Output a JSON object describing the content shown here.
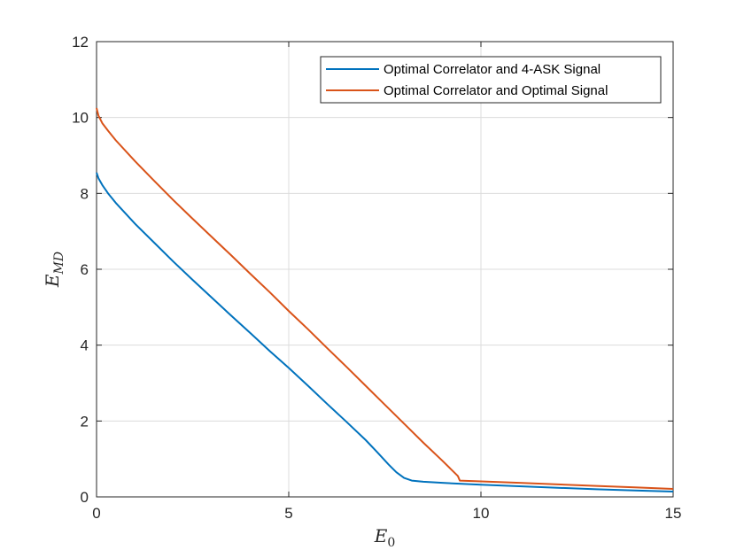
{
  "chart_data": {
    "type": "line",
    "xlabel": {
      "main": "E",
      "sub": "0"
    },
    "ylabel": {
      "main": "E",
      "sub": "MD"
    },
    "xlim": [
      0,
      15
    ],
    "ylim": [
      0,
      12
    ],
    "xticks": [
      0,
      5,
      10,
      15
    ],
    "yticks": [
      0,
      2,
      4,
      6,
      8,
      10,
      12
    ],
    "grid": true,
    "legend_position": "top-right",
    "series": [
      {
        "name": "Optimal Correlator and 4-ASK Signal",
        "color": "#0072BD",
        "points": [
          [
            0,
            8.55
          ],
          [
            0.05,
            8.4
          ],
          [
            0.15,
            8.22
          ],
          [
            0.3,
            8.0
          ],
          [
            0.5,
            7.75
          ],
          [
            1,
            7.2
          ],
          [
            1.5,
            6.7
          ],
          [
            2,
            6.2
          ],
          [
            2.5,
            5.72
          ],
          [
            3,
            5.25
          ],
          [
            3.5,
            4.78
          ],
          [
            4,
            4.32
          ],
          [
            4.5,
            3.85
          ],
          [
            5,
            3.4
          ],
          [
            5.5,
            2.93
          ],
          [
            6,
            2.45
          ],
          [
            6.5,
            1.98
          ],
          [
            7,
            1.5
          ],
          [
            7.3,
            1.18
          ],
          [
            7.6,
            0.85
          ],
          [
            7.8,
            0.65
          ],
          [
            8.0,
            0.5
          ],
          [
            8.2,
            0.43
          ],
          [
            8.5,
            0.4
          ],
          [
            9,
            0.37
          ],
          [
            10,
            0.32
          ],
          [
            11,
            0.28
          ],
          [
            12,
            0.24
          ],
          [
            13,
            0.2
          ],
          [
            14,
            0.17
          ],
          [
            15,
            0.14
          ]
        ]
      },
      {
        "name": "Optimal Correlator and Optimal Signal",
        "color": "#D95319",
        "points": [
          [
            0,
            10.25
          ],
          [
            0.05,
            10.05
          ],
          [
            0.15,
            9.85
          ],
          [
            0.3,
            9.65
          ],
          [
            0.5,
            9.4
          ],
          [
            1,
            8.85
          ],
          [
            1.5,
            8.33
          ],
          [
            2,
            7.82
          ],
          [
            2.5,
            7.33
          ],
          [
            3,
            6.85
          ],
          [
            3.5,
            6.37
          ],
          [
            4,
            5.88
          ],
          [
            4.5,
            5.4
          ],
          [
            5,
            4.9
          ],
          [
            5.5,
            4.42
          ],
          [
            6,
            3.92
          ],
          [
            6.5,
            3.43
          ],
          [
            7,
            2.93
          ],
          [
            7.5,
            2.43
          ],
          [
            8,
            1.93
          ],
          [
            8.5,
            1.43
          ],
          [
            9,
            0.95
          ],
          [
            9.4,
            0.55
          ],
          [
            9.45,
            0.43
          ],
          [
            10,
            0.41
          ],
          [
            11,
            0.37
          ],
          [
            12,
            0.33
          ],
          [
            13,
            0.29
          ],
          [
            14,
            0.25
          ],
          [
            15,
            0.21
          ]
        ]
      }
    ]
  }
}
